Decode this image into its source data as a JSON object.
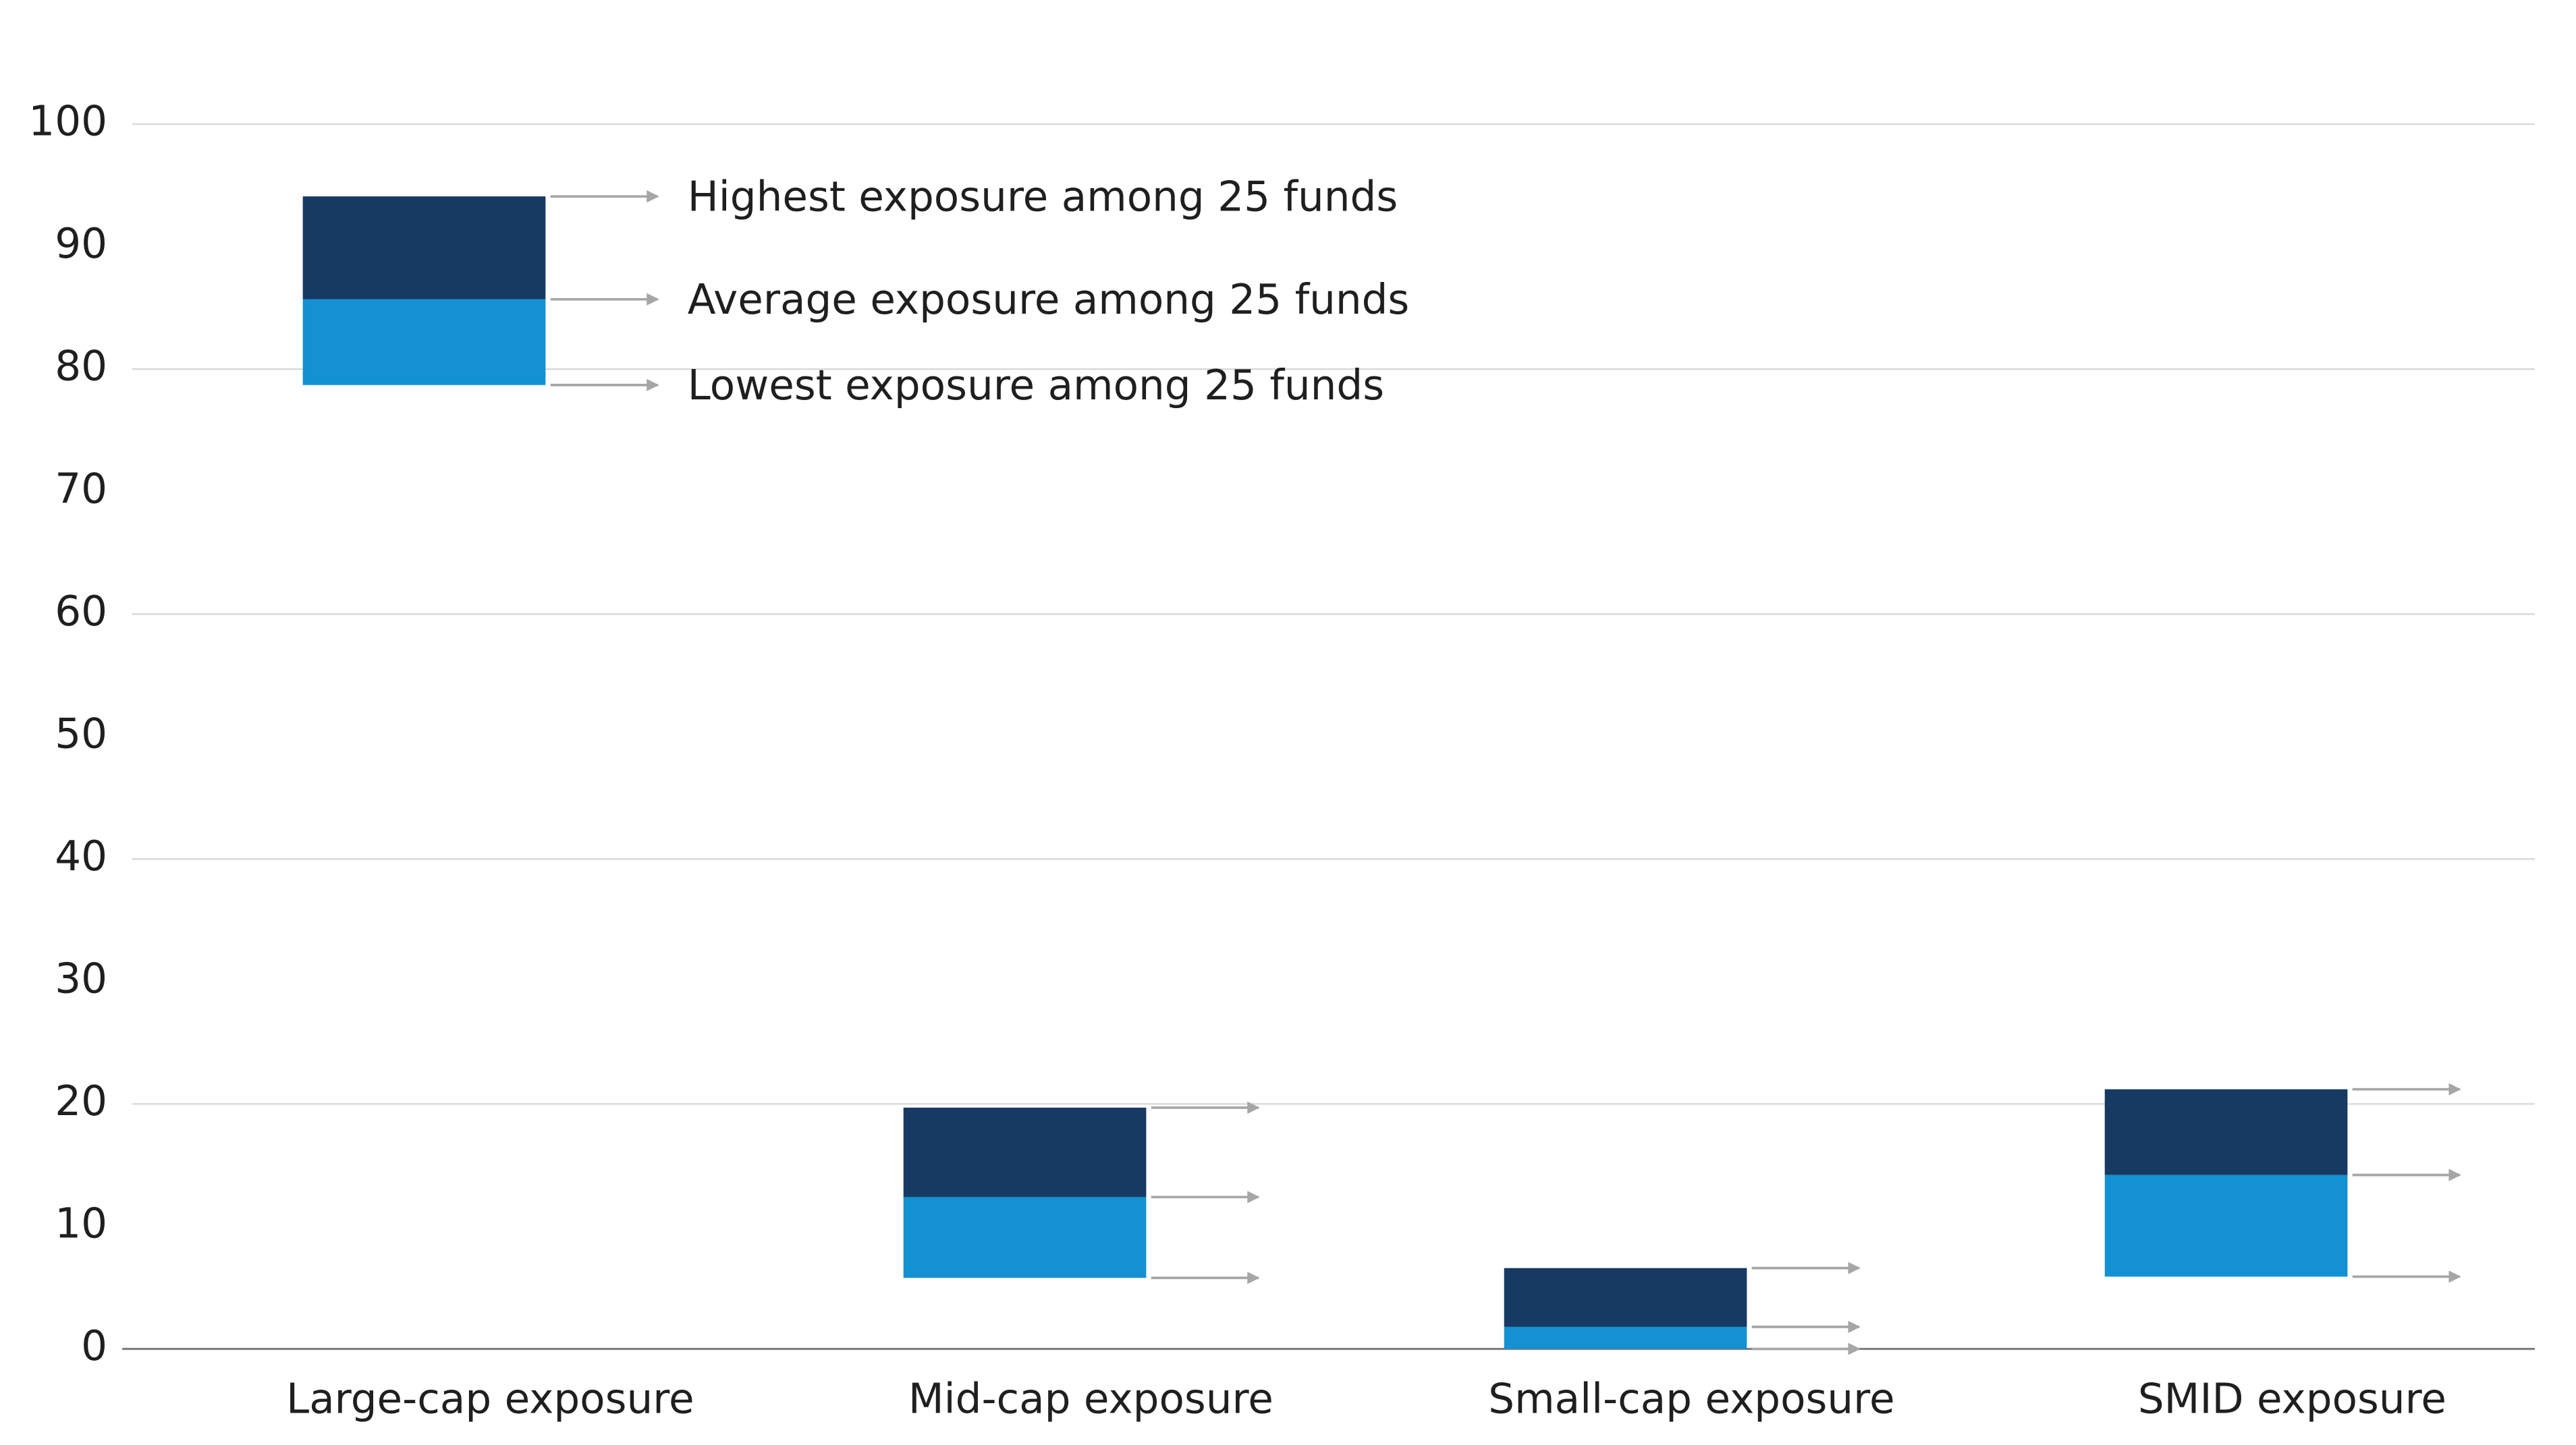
{
  "chart_data": {
    "type": "floating-bar",
    "categories": [
      "Large-cap exposure",
      "Mid-cap exposure",
      "Small-cap exposure",
      "SMID exposure"
    ],
    "series": [
      {
        "name": "Highest exposure among 25 funds",
        "color": "#173a63",
        "values": [
          94.1,
          19.7,
          6.6,
          21.2
        ]
      },
      {
        "name": "Average exposure among 25 funds",
        "color": "#1391d2",
        "values": [
          85.7,
          12.4,
          1.8,
          14.2
        ]
      },
      {
        "name": "Lowest exposure among 25 funds",
        "color": "#1391d2",
        "values": [
          78.7,
          5.8,
          0,
          5.9
        ]
      }
    ],
    "ylim": [
      0,
      100
    ],
    "yticks": [
      0,
      10,
      20,
      30,
      40,
      50,
      60,
      70,
      80,
      90,
      100
    ],
    "grid": true
  }
}
